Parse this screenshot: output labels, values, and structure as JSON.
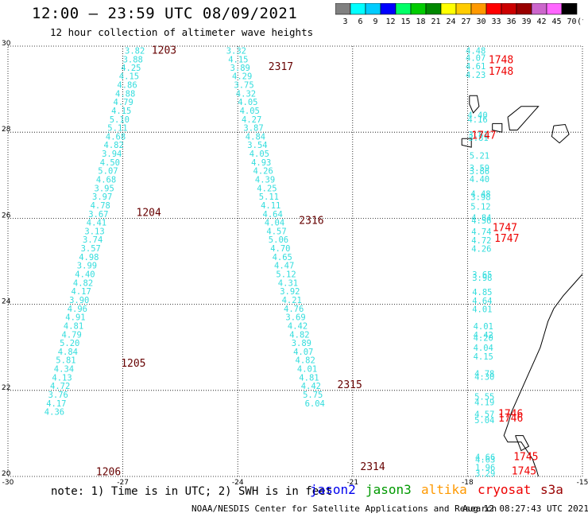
{
  "header": {
    "title": "12:00 – 23:59 UTC 08/09/2021",
    "subtitle": "12 hour collection of altimeter wave heights"
  },
  "legend": {
    "unit": "(ft)",
    "bins": [
      {
        "label": "3",
        "color": "#808080"
      },
      {
        "label": "6",
        "color": "#00ffff"
      },
      {
        "label": "9",
        "color": "#00ccff"
      },
      {
        "label": "12",
        "color": "#0000ff"
      },
      {
        "label": "15",
        "color": "#00ff66"
      },
      {
        "label": "18",
        "color": "#00cc00"
      },
      {
        "label": "21",
        "color": "#008800"
      },
      {
        "label": "24",
        "color": "#ffff00"
      },
      {
        "label": "27",
        "color": "#ffcc00"
      },
      {
        "label": "30",
        "color": "#ff9900"
      },
      {
        "label": "33",
        "color": "#ff0000"
      },
      {
        "label": "36",
        "color": "#cc0000"
      },
      {
        "label": "39",
        "color": "#990000"
      },
      {
        "label": "42",
        "color": "#cc66cc"
      },
      {
        "label": "45",
        "color": "#ff66ff"
      },
      {
        "label": "70",
        "color": "#000000"
      }
    ]
  },
  "map": {
    "lon_range": [
      -30,
      -15
    ],
    "lat_range": [
      20,
      30
    ],
    "x_ticks": [
      "-30",
      "-27",
      "-24",
      "-21",
      "-18",
      "-15"
    ],
    "y_ticks": [
      "30",
      "28",
      "26",
      "24",
      "22",
      "20"
    ],
    "colors": {
      "wave": "#33dddd",
      "time_jason3": "#660000",
      "time_cryosat": "#ee0000",
      "coast": "#000000",
      "grid": "#000000"
    },
    "track_labels": [
      {
        "text": "1203",
        "lon": -26.25,
        "lat": 29.82,
        "color": "#660000"
      },
      {
        "text": "2317",
        "lon": -23.2,
        "lat": 29.45,
        "color": "#660000"
      },
      {
        "text": "1204",
        "lon": -26.65,
        "lat": 26.05,
        "color": "#660000"
      },
      {
        "text": "2316",
        "lon": -22.4,
        "lat": 25.87,
        "color": "#660000"
      },
      {
        "text": "1205",
        "lon": -27.05,
        "lat": 22.55,
        "color": "#660000"
      },
      {
        "text": "2315",
        "lon": -21.4,
        "lat": 22.05,
        "color": "#660000"
      },
      {
        "text": "1206",
        "lon": -27.7,
        "lat": 20.03,
        "color": "#660000"
      },
      {
        "text": "2314",
        "lon": -20.8,
        "lat": 20.15,
        "color": "#660000"
      },
      {
        "text": "1748",
        "lon": -17.45,
        "lat": 29.6,
        "color": "#ee0000"
      },
      {
        "text": "1748",
        "lon": -17.45,
        "lat": 29.33,
        "color": "#ee0000"
      },
      {
        "text": "1747",
        "lon": -17.9,
        "lat": 27.85,
        "color": "#ee0000"
      },
      {
        "text": "1747",
        "lon": -17.35,
        "lat": 25.7,
        "color": "#ee0000"
      },
      {
        "text": "1747",
        "lon": -17.3,
        "lat": 25.45,
        "color": "#ee0000"
      },
      {
        "text": "1746",
        "lon": -17.2,
        "lat": 21.38,
        "color": "#ee0000"
      },
      {
        "text": "1746",
        "lon": -17.2,
        "lat": 21.28,
        "color": "#ee0000"
      },
      {
        "text": "1745",
        "lon": -16.8,
        "lat": 20.38,
        "color": "#ee0000"
      },
      {
        "text": "1745",
        "lon": -16.85,
        "lat": 20.05,
        "color": "#ee0000"
      }
    ],
    "tracks": [
      {
        "name": "track-1203",
        "values": [
          {
            "v": "3.82",
            "lon": -26.95,
            "lat": 29.82
          },
          {
            "v": "3.88",
            "lon": -27.0,
            "lat": 29.62
          },
          {
            "v": "4.25",
            "lon": -27.05,
            "lat": 29.43
          },
          {
            "v": "4.15",
            "lon": -27.1,
            "lat": 29.23
          },
          {
            "v": "4.86",
            "lon": -27.15,
            "lat": 29.03
          },
          {
            "v": "4.88",
            "lon": -27.2,
            "lat": 28.83
          },
          {
            "v": "4.79",
            "lon": -27.25,
            "lat": 28.63
          },
          {
            "v": "4.15",
            "lon": -27.3,
            "lat": 28.43
          },
          {
            "v": "5.10",
            "lon": -27.35,
            "lat": 28.23
          },
          {
            "v": "5.11",
            "lon": -27.4,
            "lat": 28.03
          },
          {
            "v": "4.68",
            "lon": -27.45,
            "lat": 27.83
          },
          {
            "v": "4.82",
            "lon": -27.5,
            "lat": 27.63
          },
          {
            "v": "3.94",
            "lon": -27.55,
            "lat": 27.43
          },
          {
            "v": "4.50",
            "lon": -27.6,
            "lat": 27.23
          },
          {
            "v": "5.07",
            "lon": -27.65,
            "lat": 27.03
          },
          {
            "v": "4.68",
            "lon": -27.7,
            "lat": 26.83
          },
          {
            "v": "3.95",
            "lon": -27.75,
            "lat": 26.63
          },
          {
            "v": "3.97",
            "lon": -27.8,
            "lat": 26.43
          },
          {
            "v": "4.78",
            "lon": -27.85,
            "lat": 26.23
          },
          {
            "v": "3.67",
            "lon": -27.9,
            "lat": 26.03
          },
          {
            "v": "4.41",
            "lon": -27.95,
            "lat": 25.83
          },
          {
            "v": "3.13",
            "lon": -28.0,
            "lat": 25.63
          },
          {
            "v": "3.74",
            "lon": -28.05,
            "lat": 25.43
          },
          {
            "v": "3.57",
            "lon": -28.1,
            "lat": 25.23
          },
          {
            "v": "4.98",
            "lon": -28.15,
            "lat": 25.03
          },
          {
            "v": "3.99",
            "lon": -28.2,
            "lat": 24.83
          },
          {
            "v": "4.40",
            "lon": -28.25,
            "lat": 24.63
          },
          {
            "v": "4.82",
            "lon": -28.3,
            "lat": 24.43
          },
          {
            "v": "4.17",
            "lon": -28.35,
            "lat": 24.23
          },
          {
            "v": "3.90",
            "lon": -28.4,
            "lat": 24.03
          },
          {
            "v": "4.96",
            "lon": -28.45,
            "lat": 23.83
          },
          {
            "v": "4.91",
            "lon": -28.5,
            "lat": 23.63
          },
          {
            "v": "4.81",
            "lon": -28.55,
            "lat": 23.43
          },
          {
            "v": "4.79",
            "lon": -28.6,
            "lat": 23.23
          },
          {
            "v": "5.20",
            "lon": -28.65,
            "lat": 23.03
          },
          {
            "v": "4.84",
            "lon": -28.7,
            "lat": 22.83
          },
          {
            "v": "5.81",
            "lon": -28.75,
            "lat": 22.63
          },
          {
            "v": "4.34",
            "lon": -28.8,
            "lat": 22.43
          },
          {
            "v": "4.13",
            "lon": -28.85,
            "lat": 22.23
          },
          {
            "v": "4.72",
            "lon": -28.9,
            "lat": 22.03
          },
          {
            "v": "3.76",
            "lon": -28.95,
            "lat": 21.83
          },
          {
            "v": "4.17",
            "lon": -29.0,
            "lat": 21.63
          },
          {
            "v": "4.36",
            "lon": -29.05,
            "lat": 21.43
          }
        ]
      },
      {
        "name": "track-2317",
        "values": [
          {
            "v": "3.32",
            "lon": -24.3,
            "lat": 29.82
          },
          {
            "v": "4.15",
            "lon": -24.25,
            "lat": 29.62
          },
          {
            "v": "3.89",
            "lon": -24.2,
            "lat": 29.43
          },
          {
            "v": "4.29",
            "lon": -24.15,
            "lat": 29.23
          },
          {
            "v": "3.75",
            "lon": -24.1,
            "lat": 29.03
          },
          {
            "v": "4.32",
            "lon": -24.05,
            "lat": 28.83
          },
          {
            "v": "4.05",
            "lon": -24.0,
            "lat": 28.63
          },
          {
            "v": "4.05",
            "lon": -23.95,
            "lat": 28.43
          },
          {
            "v": "4.27",
            "lon": -23.9,
            "lat": 28.23
          },
          {
            "v": "3.87",
            "lon": -23.85,
            "lat": 28.03
          },
          {
            "v": "4.84",
            "lon": -23.8,
            "lat": 27.83
          },
          {
            "v": "3.54",
            "lon": -23.75,
            "lat": 27.63
          },
          {
            "v": "4.05",
            "lon": -23.7,
            "lat": 27.43
          },
          {
            "v": "4.93",
            "lon": -23.65,
            "lat": 27.23
          },
          {
            "v": "4.26",
            "lon": -23.6,
            "lat": 27.03
          },
          {
            "v": "4.39",
            "lon": -23.55,
            "lat": 26.83
          },
          {
            "v": "4.25",
            "lon": -23.5,
            "lat": 26.63
          },
          {
            "v": "5.11",
            "lon": -23.45,
            "lat": 26.43
          },
          {
            "v": "4.11",
            "lon": -23.4,
            "lat": 26.23
          },
          {
            "v": "4.64",
            "lon": -23.35,
            "lat": 26.03
          },
          {
            "v": "4.04",
            "lon": -23.3,
            "lat": 25.83
          },
          {
            "v": "4.57",
            "lon": -23.25,
            "lat": 25.63
          },
          {
            "v": "5.06",
            "lon": -23.2,
            "lat": 25.43
          },
          {
            "v": "4.70",
            "lon": -23.15,
            "lat": 25.23
          },
          {
            "v": "4.65",
            "lon": -23.1,
            "lat": 25.03
          },
          {
            "v": "4.47",
            "lon": -23.05,
            "lat": 24.83
          },
          {
            "v": "5.12",
            "lon": -23.0,
            "lat": 24.63
          },
          {
            "v": "4.31",
            "lon": -22.95,
            "lat": 24.43
          },
          {
            "v": "3.92",
            "lon": -22.9,
            "lat": 24.23
          },
          {
            "v": "4.21",
            "lon": -22.85,
            "lat": 24.03
          },
          {
            "v": "4.76",
            "lon": -22.8,
            "lat": 23.83
          },
          {
            "v": "3.69",
            "lon": -22.75,
            "lat": 23.63
          },
          {
            "v": "4.42",
            "lon": -22.7,
            "lat": 23.43
          },
          {
            "v": "4.82",
            "lon": -22.65,
            "lat": 23.23
          },
          {
            "v": "3.89",
            "lon": -22.6,
            "lat": 23.03
          },
          {
            "v": "4.07",
            "lon": -22.55,
            "lat": 22.83
          },
          {
            "v": "4.82",
            "lon": -22.5,
            "lat": 22.63
          },
          {
            "v": "4.01",
            "lon": -22.45,
            "lat": 22.43
          },
          {
            "v": "4.81",
            "lon": -22.4,
            "lat": 22.23
          },
          {
            "v": "4.42",
            "lon": -22.35,
            "lat": 22.03
          },
          {
            "v": "5.75",
            "lon": -22.3,
            "lat": 21.83
          },
          {
            "v": "6.04",
            "lon": -22.25,
            "lat": 21.63
          }
        ]
      },
      {
        "name": "track-1748",
        "values": [
          {
            "v": "4.48",
            "lon": -18.05,
            "lat": 29.82
          },
          {
            "v": "4.07",
            "lon": -18.05,
            "lat": 29.66
          },
          {
            "v": "4.61",
            "lon": -18.05,
            "lat": 29.46
          },
          {
            "v": "4.23",
            "lon": -18.05,
            "lat": 29.26
          },
          {
            "v": "4.40",
            "lon": -18.0,
            "lat": 28.33
          },
          {
            "v": "4.16",
            "lon": -18.0,
            "lat": 28.23
          },
          {
            "v": "3.81",
            "lon": -17.98,
            "lat": 27.87
          },
          {
            "v": "3.81",
            "lon": -17.98,
            "lat": 27.8
          },
          {
            "v": "5.21",
            "lon": -17.95,
            "lat": 27.38
          },
          {
            "v": "3.59",
            "lon": -17.95,
            "lat": 27.1
          },
          {
            "v": "3.86",
            "lon": -17.95,
            "lat": 27.02
          },
          {
            "v": "4.40",
            "lon": -17.95,
            "lat": 26.84
          },
          {
            "v": "4.48",
            "lon": -17.92,
            "lat": 26.5
          },
          {
            "v": "3.98",
            "lon": -17.92,
            "lat": 26.42
          },
          {
            "v": "5.12",
            "lon": -17.92,
            "lat": 26.2
          },
          {
            "v": "4.84",
            "lon": -17.9,
            "lat": 25.94
          },
          {
            "v": "4.56",
            "lon": -17.9,
            "lat": 25.88
          },
          {
            "v": "4.74",
            "lon": -17.9,
            "lat": 25.62
          },
          {
            "v": "4.72",
            "lon": -17.9,
            "lat": 25.42
          },
          {
            "v": "4.26",
            "lon": -17.9,
            "lat": 25.22
          },
          {
            "v": "3.65",
            "lon": -17.88,
            "lat": 24.62
          },
          {
            "v": "3.98",
            "lon": -17.88,
            "lat": 24.55
          },
          {
            "v": "4.85",
            "lon": -17.88,
            "lat": 24.21
          },
          {
            "v": "4.64",
            "lon": -17.88,
            "lat": 24.01
          },
          {
            "v": "4.01",
            "lon": -17.88,
            "lat": 23.82
          },
          {
            "v": "4.01",
            "lon": -17.85,
            "lat": 23.42
          },
          {
            "v": "4.42",
            "lon": -17.85,
            "lat": 23.22
          },
          {
            "v": "4.20",
            "lon": -17.85,
            "lat": 23.15
          },
          {
            "v": "4.04",
            "lon": -17.85,
            "lat": 22.92
          },
          {
            "v": "4.15",
            "lon": -17.85,
            "lat": 22.72
          },
          {
            "v": "4.78",
            "lon": -17.82,
            "lat": 22.32
          },
          {
            "v": "4.30",
            "lon": -17.82,
            "lat": 22.25
          },
          {
            "v": "5.55",
            "lon": -17.82,
            "lat": 21.78
          },
          {
            "v": "4.19",
            "lon": -17.82,
            "lat": 21.65
          },
          {
            "v": "4.57",
            "lon": -17.82,
            "lat": 21.38
          },
          {
            "v": "5.04",
            "lon": -17.82,
            "lat": 21.24
          },
          {
            "v": "4.66",
            "lon": -17.8,
            "lat": 20.38
          },
          {
            "v": "4.63",
            "lon": -17.8,
            "lat": 20.32
          },
          {
            "v": "1.96",
            "lon": -17.8,
            "lat": 20.14
          },
          {
            "v": "3.29",
            "lon": -17.8,
            "lat": 20.0
          }
        ]
      }
    ]
  },
  "note": {
    "text": "note: 1) Time is in UTC; 2) SWH is in feet",
    "satellites": [
      {
        "name": "jason2",
        "color": "#0000ee"
      },
      {
        "name": "jason3",
        "color": "#009900"
      },
      {
        "name": "altika",
        "color": "#ff9900"
      },
      {
        "name": "cryosat",
        "color": "#ee0000"
      },
      {
        "name": "s3a",
        "color": "#990000"
      }
    ]
  },
  "footer": {
    "source": "NOAA/NESDIS Center for Satellite Applications and Research",
    "timestamp": "Aug 12 08:27:43 UTC 2021"
  }
}
